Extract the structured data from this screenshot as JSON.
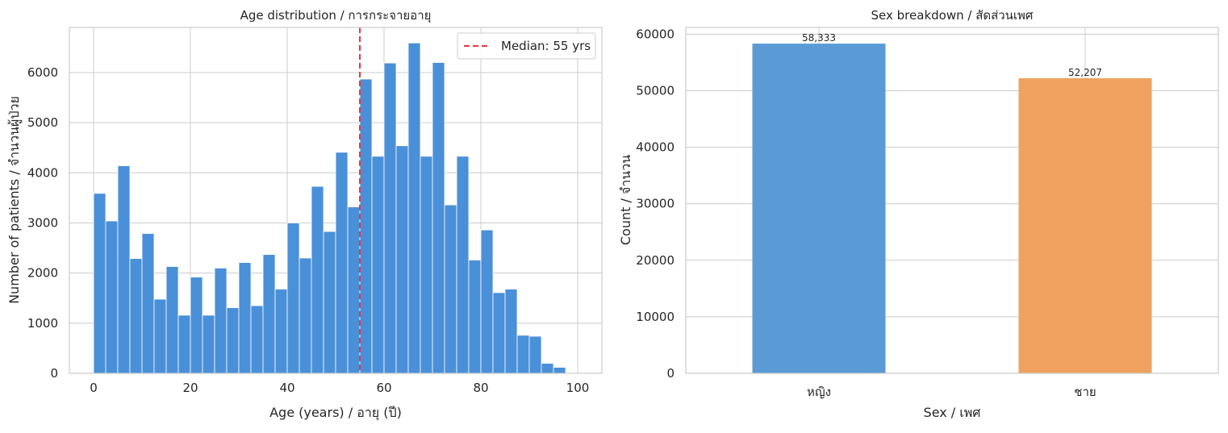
{
  "chart_data": [
    {
      "type": "histogram",
      "title": "Age distribution / การกระจายอายุ",
      "xlabel": "Age (years) / อายุ (ปี)",
      "ylabel": "Number of patients / จำนวนผู้ป่วย",
      "xlim": [
        -5,
        105
      ],
      "ylim": [
        0,
        6900
      ],
      "xticks": [
        0,
        20,
        40,
        60,
        80,
        100
      ],
      "yticks": [
        0,
        1000,
        2000,
        3000,
        4000,
        5000,
        6000
      ],
      "bin_width": 2.5,
      "bin_start": 0,
      "bar_color": "#4a90d9",
      "counts": [
        3590,
        3040,
        4140,
        2290,
        2790,
        1480,
        2130,
        1160,
        1920,
        1160,
        2100,
        1310,
        2210,
        1350,
        2370,
        1680,
        3000,
        2300,
        3730,
        2830,
        4410,
        3320,
        5870,
        4330,
        6190,
        4540,
        6590,
        4330,
        6200,
        3360,
        4330,
        2260,
        2860,
        1610,
        1680,
        760,
        740,
        200,
        120
      ],
      "median_line": {
        "x": 55,
        "color": "#e8363f",
        "style": "dashed",
        "label": "Median: 55 yrs"
      },
      "legend": "top-right",
      "grid": true
    },
    {
      "type": "bar",
      "title": "Sex breakdown / สัดส่วนเพศ",
      "xlabel": "Sex / เพศ",
      "ylabel": "Count / จำนวน",
      "ylim": [
        0,
        61200
      ],
      "yticks": [
        0,
        10000,
        20000,
        30000,
        40000,
        50000,
        60000
      ],
      "categories": [
        "หญิง",
        "ชาย"
      ],
      "values": [
        58333,
        52207
      ],
      "value_labels": [
        "58,333",
        "52,207"
      ],
      "colors": [
        "#5b9bd5",
        "#f0a15f"
      ],
      "grid": true
    }
  ]
}
